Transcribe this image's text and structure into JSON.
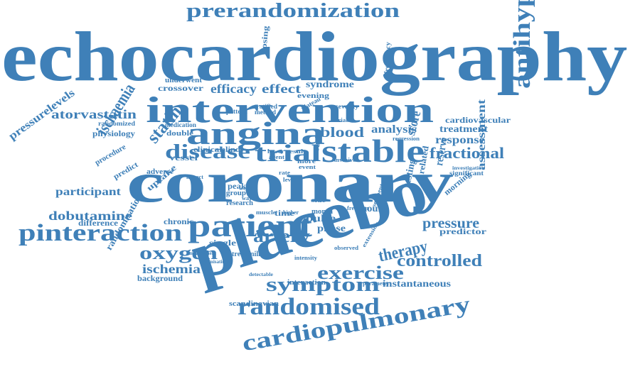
{
  "palette": {
    "word": "#3f80b8",
    "background": "#ffffff"
  },
  "words": [
    "echocardiography",
    "coronary",
    "placebo",
    "intervention",
    "angina",
    "stable",
    "patient",
    "randomised",
    "cardiopulmonary",
    "antihypertensive",
    "prerandomization",
    "pinteraction",
    "symptom",
    "exercise",
    "trial",
    "disease",
    "artery",
    "oxygen",
    "controlled",
    "therapy",
    "statin",
    "ischaemia",
    "fractional",
    "atorvastatin",
    "dobutamine",
    "ischemia",
    "pressurelevels",
    "participant",
    "efficacy",
    "effect",
    "blood",
    "analysis",
    "pressure",
    "score",
    "treatment",
    "response",
    "reserve",
    "assessment",
    "syndrome",
    "hour",
    "phase",
    "pulse",
    "cardiovascular",
    "instantaneous",
    "randomisation",
    "physiology",
    "difference",
    "background",
    "crossover",
    "underwent",
    "chronic",
    "single",
    "scandinavian",
    "predictor",
    "testing",
    "uptake",
    "frequency",
    "dosing",
    "evening",
    "vessel",
    "medication",
    "double",
    "adverse",
    "procedure",
    "predict",
    "randomized",
    "interaction",
    "morning",
    "related",
    "significant",
    "investigation",
    "parameter",
    "time",
    "peak",
    "group",
    "research",
    "clinical",
    "blind",
    "stratified",
    "method",
    "pattern",
    "plateau",
    "severity",
    "variable",
    "regression",
    "invasive",
    "treadmill",
    "month",
    "side",
    "event",
    "result",
    "lower",
    "agent",
    "ratio",
    "more",
    "impact",
    "freedom",
    "segment",
    "extension",
    "observed",
    "intensity",
    "higher",
    "muscle",
    "detectable",
    "improvement",
    "optimisation",
    "week",
    "wave",
    "rate",
    "level"
  ]
}
